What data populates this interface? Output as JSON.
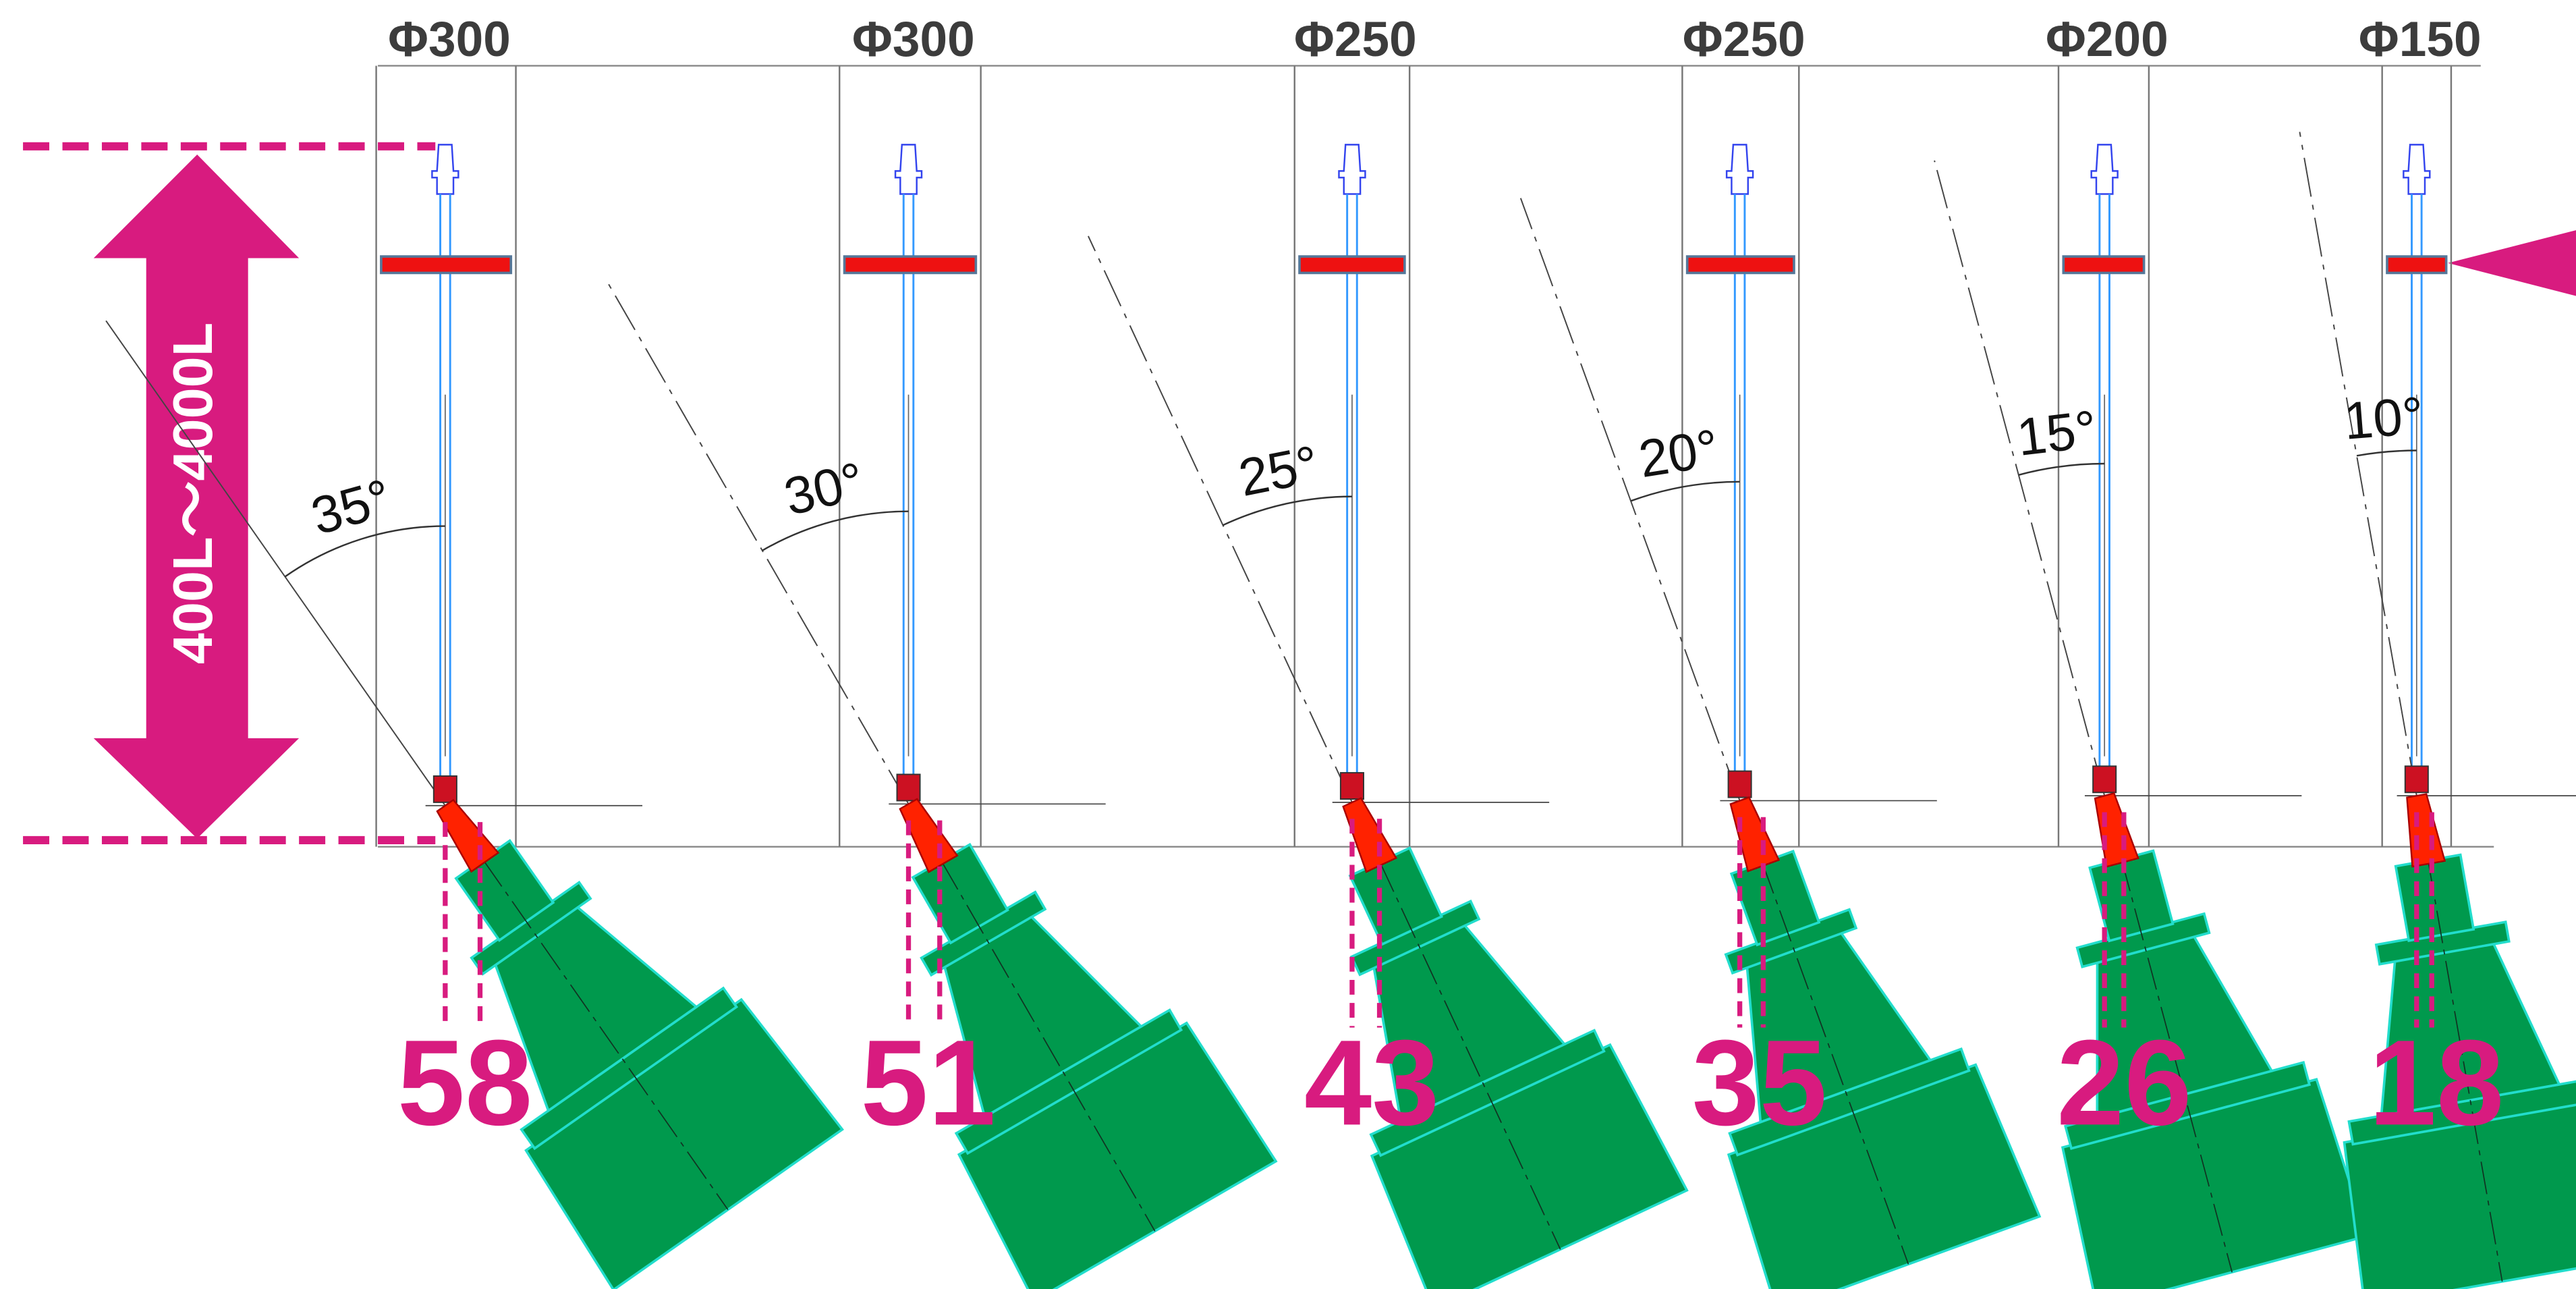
{
  "range_label": "400L～4000L",
  "columns": [
    {
      "diameter": "Φ300",
      "angle": "35°",
      "offset": "58"
    },
    {
      "diameter": "Φ300",
      "angle": "30°",
      "offset": "51"
    },
    {
      "diameter": "Φ250",
      "angle": "25°",
      "offset": "43"
    },
    {
      "diameter": "Φ250",
      "angle": "20°",
      "offset": "35"
    },
    {
      "diameter": "Φ200",
      "angle": "15°",
      "offset": "26"
    },
    {
      "diameter": "Φ150",
      "angle": "10°",
      "offset": "18"
    }
  ]
}
